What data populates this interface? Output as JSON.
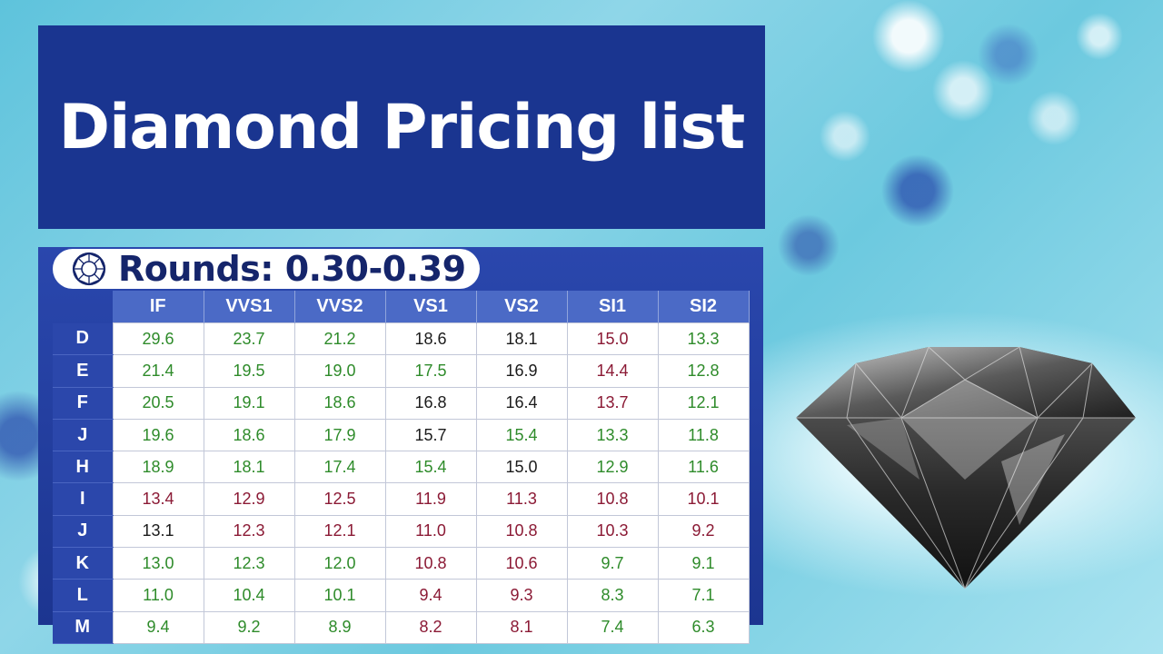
{
  "title": "Diamond Pricing list",
  "subtitle": "Rounds: 0.30-0.39",
  "colors": {
    "green": "#2e8b2a",
    "black": "#1b1b1b",
    "red": "#8b1a35",
    "header_blue": "#1a3590"
  },
  "table": {
    "columns": [
      "IF",
      "VVS1",
      "VVS2",
      "VS1",
      "VS2",
      "SI1",
      "SI2"
    ],
    "rows": [
      {
        "grade": "D",
        "values": [
          "29.6",
          "23.7",
          "21.2",
          "18.6",
          "18.1",
          "15.0",
          "13.3"
        ],
        "colors": [
          "green",
          "green",
          "green",
          "black",
          "black",
          "red",
          "green"
        ]
      },
      {
        "grade": "E",
        "values": [
          "21.4",
          "19.5",
          "19.0",
          "17.5",
          "16.9",
          "14.4",
          "12.8"
        ],
        "colors": [
          "green",
          "green",
          "green",
          "green",
          "black",
          "red",
          "green"
        ]
      },
      {
        "grade": "F",
        "values": [
          "20.5",
          "19.1",
          "18.6",
          "16.8",
          "16.4",
          "13.7",
          "12.1"
        ],
        "colors": [
          "green",
          "green",
          "green",
          "black",
          "black",
          "red",
          "green"
        ]
      },
      {
        "grade": "J",
        "values": [
          "19.6",
          "18.6",
          "17.9",
          "15.7",
          "15.4",
          "13.3",
          "11.8"
        ],
        "colors": [
          "green",
          "green",
          "green",
          "black",
          "green",
          "green",
          "green"
        ]
      },
      {
        "grade": "H",
        "values": [
          "18.9",
          "18.1",
          "17.4",
          "15.4",
          "15.0",
          "12.9",
          "11.6"
        ],
        "colors": [
          "green",
          "green",
          "green",
          "green",
          "black",
          "green",
          "green"
        ]
      },
      {
        "grade": "I",
        "values": [
          "13.4",
          "12.9",
          "12.5",
          "11.9",
          "11.3",
          "10.8",
          "10.1"
        ],
        "colors": [
          "red",
          "red",
          "red",
          "red",
          "red",
          "red",
          "red"
        ]
      },
      {
        "grade": "J",
        "values": [
          "13.1",
          "12.3",
          "12.1",
          "11.0",
          "10.8",
          "10.3",
          "9.2"
        ],
        "colors": [
          "black",
          "red",
          "red",
          "red",
          "red",
          "red",
          "red"
        ]
      },
      {
        "grade": "K",
        "values": [
          "13.0",
          "12.3",
          "12.0",
          "10.8",
          "10.6",
          "9.7",
          "9.1"
        ],
        "colors": [
          "green",
          "green",
          "green",
          "red",
          "red",
          "green",
          "green"
        ]
      },
      {
        "grade": "L",
        "values": [
          "11.0",
          "10.4",
          "10.1",
          "9.4",
          "9.3",
          "8.3",
          "7.1"
        ],
        "colors": [
          "green",
          "green",
          "green",
          "red",
          "red",
          "green",
          "green"
        ]
      },
      {
        "grade": "M",
        "values": [
          "9.4",
          "9.2",
          "8.9",
          "8.2",
          "8.1",
          "7.4",
          "6.3"
        ],
        "colors": [
          "green",
          "green",
          "green",
          "red",
          "red",
          "green",
          "green"
        ]
      }
    ]
  },
  "icons": {
    "pill_icon": "round-diamond-icon",
    "illustration": "diamond-illustration"
  }
}
